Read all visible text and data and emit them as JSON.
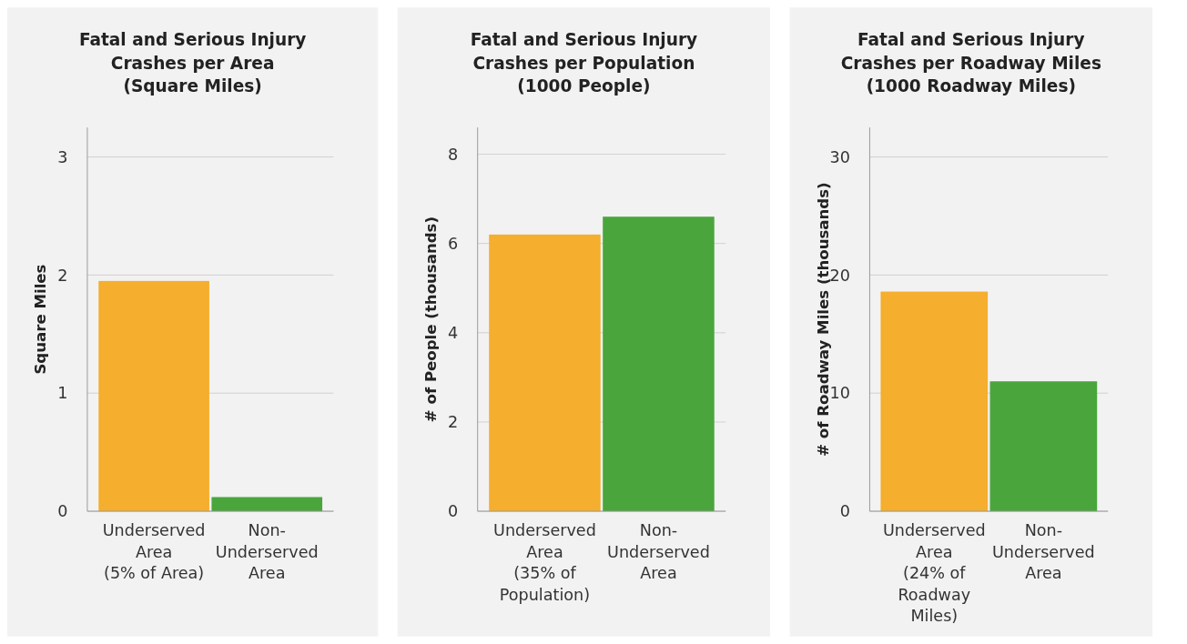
{
  "chart_data": [
    {
      "type": "bar",
      "title": "Fatal and Serious Injury\nCrashes per Area\n(Square Miles)",
      "ylabel": "Square Miles",
      "categories": [
        "Underserved\nArea\n(5% of Area)",
        "Non-\nUnderserved\nArea"
      ],
      "values": [
        1.95,
        0.12
      ],
      "colors": [
        "#f5ae2d",
        "#4aa63c"
      ],
      "ylim": [
        0,
        3.25
      ],
      "yticks": [
        0,
        1,
        2,
        3
      ],
      "grid": "y"
    },
    {
      "type": "bar",
      "title": "Fatal and Serious Injury\nCrashes per Population\n(1000 People)",
      "ylabel": "# of People (thousands)",
      "categories": [
        "Underserved\nArea\n(35% of\nPopulation)",
        "Non-\nUnderserved\nArea"
      ],
      "values": [
        6.2,
        6.6
      ],
      "colors": [
        "#f5ae2d",
        "#4aa63c"
      ],
      "ylim": [
        0,
        8.6
      ],
      "yticks": [
        0,
        2,
        4,
        6,
        8
      ],
      "grid": "y"
    },
    {
      "type": "bar",
      "title": "Fatal and Serious Injury\nCrashes per Roadway Miles\n(1000 Roadway Miles)",
      "ylabel": "# of Roadway Miles (thousands)",
      "categories": [
        "Underserved\nArea\n(24% of\nRoadway\nMiles)",
        "Non-\nUnderserved\nArea"
      ],
      "values": [
        18.6,
        11
      ],
      "colors": [
        "#f5ae2d",
        "#4aa63c"
      ],
      "ylim": [
        0,
        32.5
      ],
      "yticks": [
        0,
        10,
        20,
        30
      ],
      "grid": "y"
    }
  ]
}
